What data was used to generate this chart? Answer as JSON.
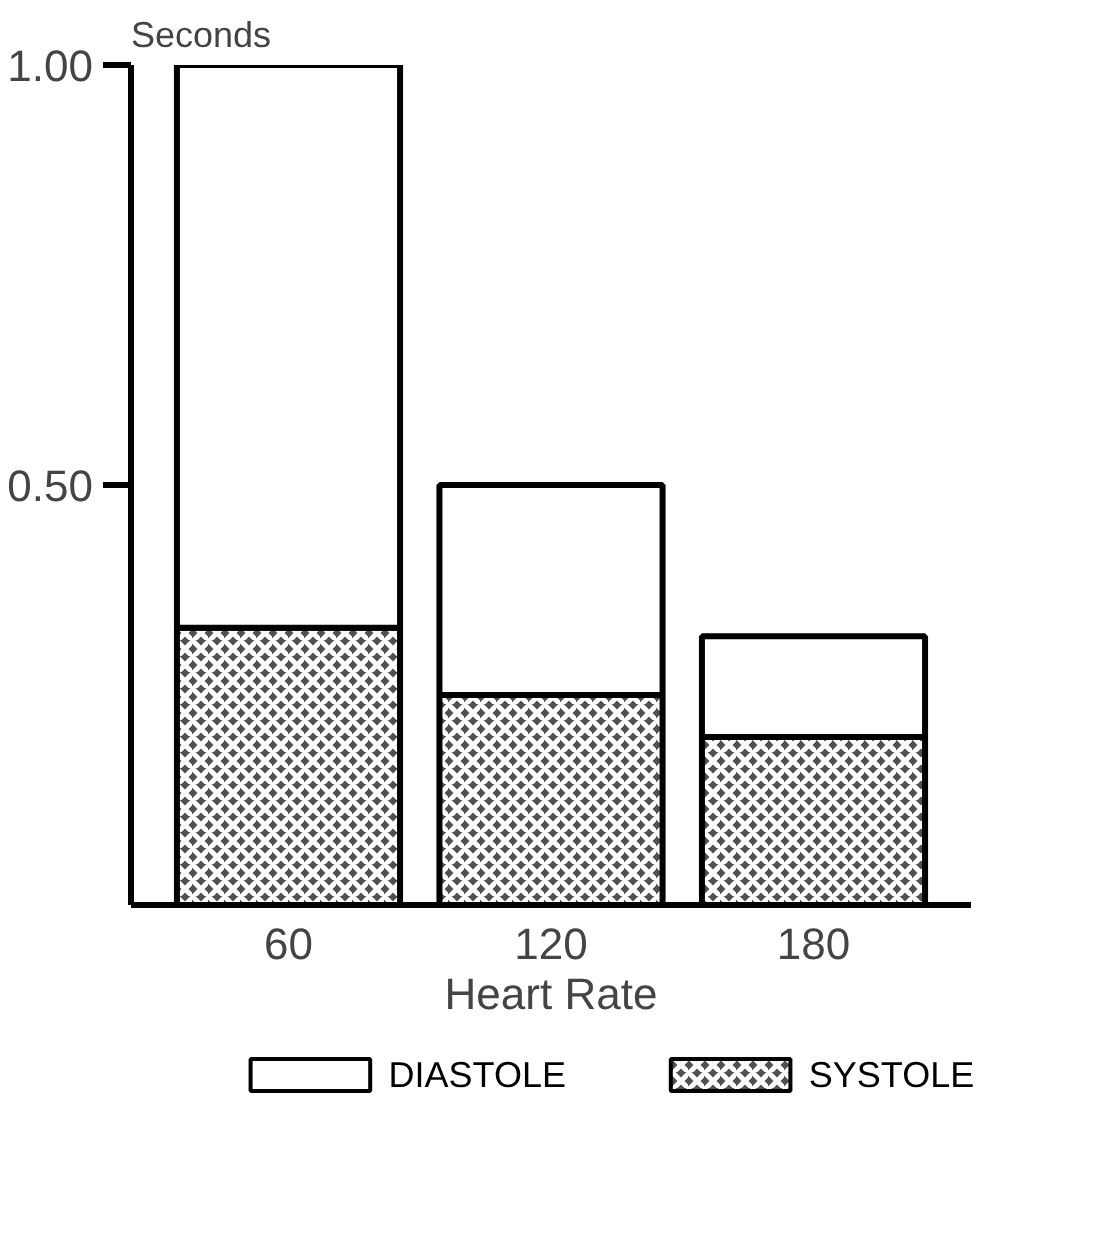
{
  "chart_data": {
    "type": "bar",
    "stacked": true,
    "xlabel": "Heart Rate",
    "ylabel": "Seconds",
    "categories": [
      "60",
      "120",
      "180"
    ],
    "series": [
      {
        "name": "SYSTOLE",
        "color": "#505050",
        "values": [
          0.33,
          0.25,
          0.2
        ]
      },
      {
        "name": "DIASTOLE",
        "color": "#ffffff",
        "values": [
          0.67,
          0.25,
          0.12
        ]
      }
    ],
    "ylim": [
      0,
      1.0
    ],
    "yticks": [
      {
        "value": 0.5,
        "label": "0.50"
      },
      {
        "value": 1.0,
        "label": "1.00"
      }
    ],
    "legend": "bottom"
  }
}
